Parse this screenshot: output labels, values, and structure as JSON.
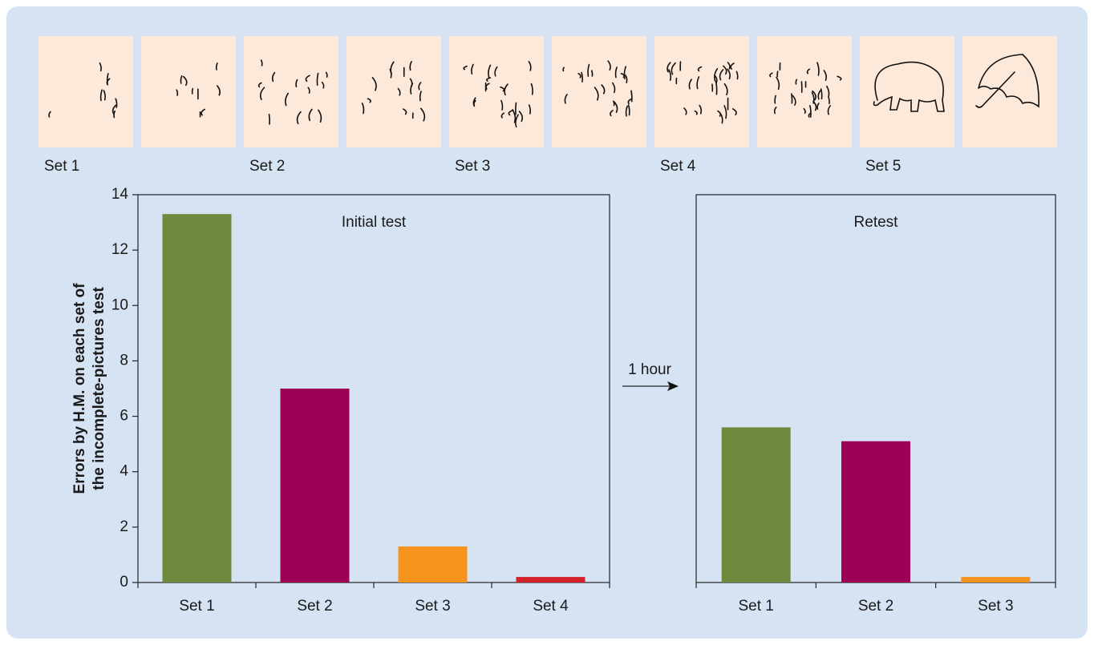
{
  "sets": [
    "Set 1",
    "Set 2",
    "Set 3",
    "Set 4",
    "Set 5"
  ],
  "annotation": "1 hour",
  "chart_data": [
    {
      "type": "bar",
      "title": "Initial test",
      "ylabel": [
        "Errors by H.M. on each set of",
        "the incomplete-pictures test"
      ],
      "categories": [
        "Set 1",
        "Set 2",
        "Set 3",
        "Set 4"
      ],
      "values": [
        13.3,
        7,
        1.3,
        0.2
      ],
      "colors": [
        "#6e8b3d",
        "#9c0057",
        "#f7941d",
        "#d2232a"
      ],
      "ylim": [
        0,
        14
      ],
      "yticks": [
        0,
        2,
        4,
        6,
        8,
        10,
        12,
        14
      ]
    },
    {
      "type": "bar",
      "title": "Retest",
      "categories": [
        "Set 1",
        "Set 2",
        "Set 3"
      ],
      "values": [
        5.6,
        5.1,
        0.2
      ],
      "colors": [
        "#6e8b3d",
        "#9c0057",
        "#f7941d"
      ],
      "ylim": [
        0,
        14
      ]
    }
  ]
}
